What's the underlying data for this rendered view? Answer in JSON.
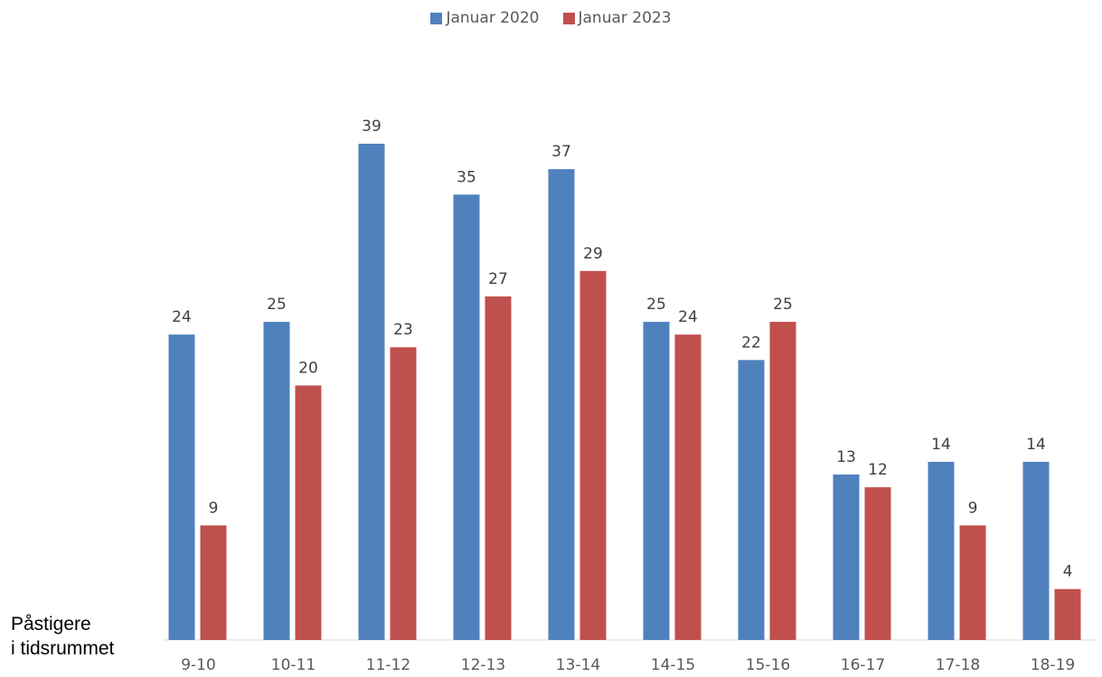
{
  "chart_data": {
    "type": "bar",
    "categories": [
      "9-10",
      "10-11",
      "11-12",
      "12-13",
      "13-14",
      "14-15",
      "15-16",
      "16-17",
      "17-18",
      "18-19"
    ],
    "series": [
      {
        "name": "Januar 2020",
        "color": "#4F81BD",
        "values": [
          24,
          25,
          39,
          35,
          37,
          25,
          22,
          13,
          14,
          14
        ]
      },
      {
        "name": "Januar 2023",
        "color": "#C0504D",
        "values": [
          9,
          20,
          23,
          27,
          29,
          24,
          25,
          12,
          9,
          4
        ]
      }
    ],
    "ylabel": [
      "Påstigere",
      "i tidsrummet"
    ],
    "ylim": [
      0,
      39
    ],
    "grid": false,
    "legend": "top-center",
    "data_labels": true
  }
}
